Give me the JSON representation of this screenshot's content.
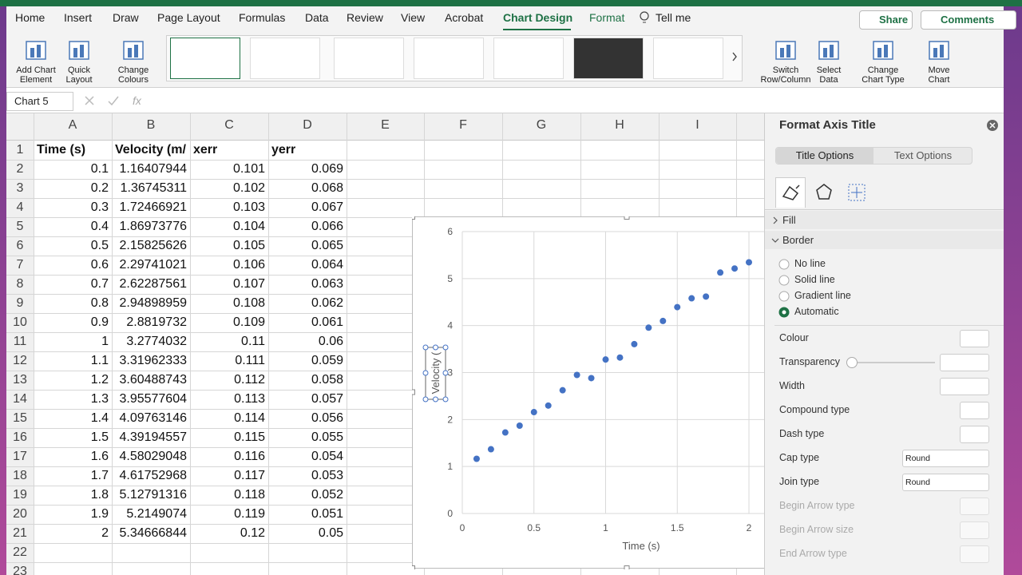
{
  "ribbon": {
    "tabs": [
      "Home",
      "Insert",
      "Draw",
      "Page Layout",
      "Formulas",
      "Data",
      "Review",
      "View",
      "Acrobat",
      "Chart Design",
      "Format"
    ],
    "tell_me": "Tell me",
    "share": "Share",
    "comments": "Comments",
    "left_buttons": [
      [
        "Add Chart",
        "Element"
      ],
      [
        "Quick",
        "Layout"
      ],
      [
        "Change",
        "Colours"
      ]
    ],
    "right_buttons": [
      [
        "Switch",
        "Row/Column"
      ],
      [
        "Select",
        "Data"
      ],
      [
        "Change",
        "Chart Type"
      ],
      [
        "Move",
        "Chart"
      ]
    ]
  },
  "formula_bar": {
    "name_box": "Chart 5",
    "fx": "fx"
  },
  "sheet": {
    "columns": [
      "A",
      "B",
      "C",
      "D",
      "E",
      "F",
      "G",
      "H",
      "I"
    ],
    "row_numbers": [
      1,
      2,
      3,
      4,
      5,
      6,
      7,
      8,
      9,
      10,
      11,
      12,
      13,
      14,
      15,
      16,
      17,
      18,
      19,
      20,
      21,
      22,
      23
    ],
    "rows": [
      [
        "Time (s)",
        "Velocity (m/",
        "xerr",
        "yerr"
      ],
      [
        "0.1",
        "1.16407944",
        "0.101",
        "0.069"
      ],
      [
        "0.2",
        "1.36745311",
        "0.102",
        "0.068"
      ],
      [
        "0.3",
        "1.72466921",
        "0.103",
        "0.067"
      ],
      [
        "0.4",
        "1.86973776",
        "0.104",
        "0.066"
      ],
      [
        "0.5",
        "2.15825626",
        "0.105",
        "0.065"
      ],
      [
        "0.6",
        "2.29741021",
        "0.106",
        "0.064"
      ],
      [
        "0.7",
        "2.62287561",
        "0.107",
        "0.063"
      ],
      [
        "0.8",
        "2.94898959",
        "0.108",
        "0.062"
      ],
      [
        "0.9",
        "2.8819732",
        "0.109",
        "0.061"
      ],
      [
        "1",
        "3.2774032",
        "0.11",
        "0.06"
      ],
      [
        "1.1",
        "3.31962333",
        "0.111",
        "0.059"
      ],
      [
        "1.2",
        "3.60488743",
        "0.112",
        "0.058"
      ],
      [
        "1.3",
        "3.95577604",
        "0.113",
        "0.057"
      ],
      [
        "1.4",
        "4.09763146",
        "0.114",
        "0.056"
      ],
      [
        "1.5",
        "4.39194557",
        "0.115",
        "0.055"
      ],
      [
        "1.6",
        "4.58029048",
        "0.116",
        "0.054"
      ],
      [
        "1.7",
        "4.61752968",
        "0.117",
        "0.053"
      ],
      [
        "1.8",
        "5.12791316",
        "0.118",
        "0.052"
      ],
      [
        "1.9",
        "5.2149074",
        "0.119",
        "0.051"
      ],
      [
        "2",
        "5.34666844",
        "0.12",
        "0.05"
      ]
    ]
  },
  "chart_data": {
    "type": "scatter",
    "x": [
      0.1,
      0.2,
      0.3,
      0.4,
      0.5,
      0.6,
      0.7,
      0.8,
      0.9,
      1,
      1.1,
      1.2,
      1.3,
      1.4,
      1.5,
      1.6,
      1.7,
      1.8,
      1.9,
      2
    ],
    "y": [
      1.16407944,
      1.36745311,
      1.72466921,
      1.86973776,
      2.15825626,
      2.29741021,
      2.62287561,
      2.94898959,
      2.8819732,
      3.2774032,
      3.31962333,
      3.60488743,
      3.95577604,
      4.09763146,
      4.39194557,
      4.58029048,
      4.61752968,
      5.12791316,
      5.2149074,
      5.34666844
    ],
    "color": "#4472c4",
    "xlabel": "Time (s)",
    "ylabel": "Velocity (",
    "xlim": [
      0,
      2.5
    ],
    "ylim": [
      0,
      6
    ],
    "xticks": [
      0,
      0.5,
      1,
      1.5,
      2
    ],
    "yticks": [
      0,
      1,
      2,
      3,
      4,
      5,
      6
    ],
    "grid": true
  },
  "panel": {
    "title": "Format Axis Title",
    "tabs": [
      "Title Options",
      "Text Options"
    ],
    "sections": [
      "Fill",
      "Border"
    ],
    "border_options": [
      "No line",
      "Solid line",
      "Gradient line",
      "Automatic"
    ],
    "properties": [
      "Colour",
      "Transparency",
      "Width",
      "Compound type",
      "Dash type",
      "Cap type",
      "Join type",
      "Begin Arrow type",
      "Begin Arrow size",
      "End Arrow type"
    ],
    "cap_value": "Round",
    "join_value": "Round"
  }
}
